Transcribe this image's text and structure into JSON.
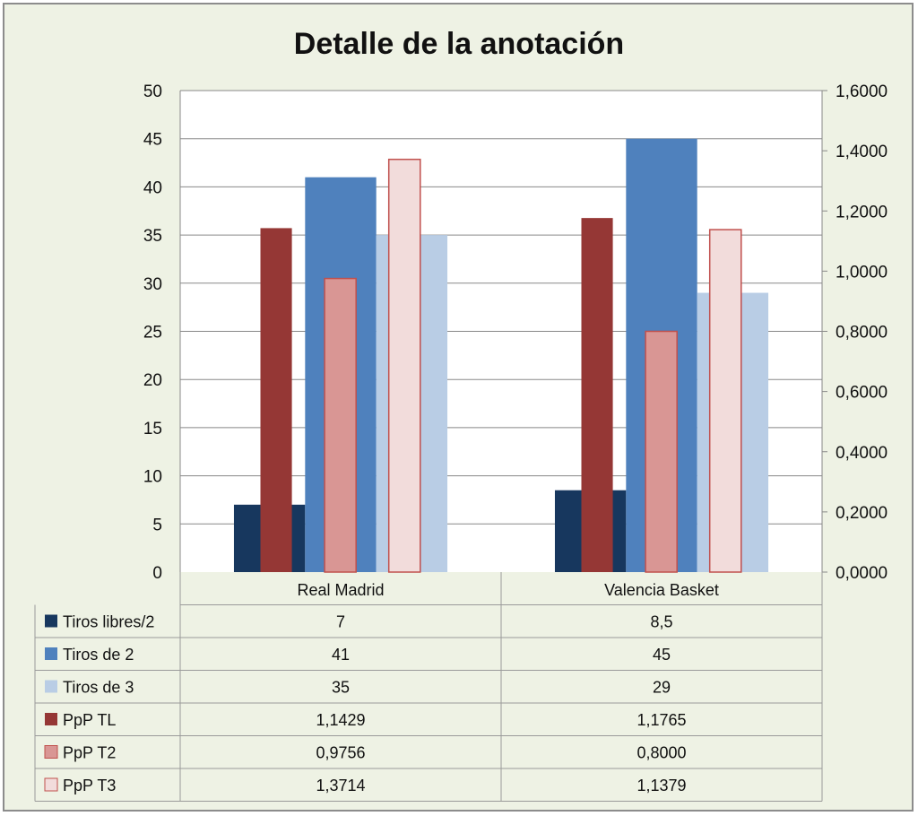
{
  "chart_data": {
    "type": "bar",
    "title": "Detalle de la anotación",
    "categories": [
      "Real Madrid",
      "Valencia Basket"
    ],
    "y_left": {
      "min": 0,
      "max": 50,
      "step": 5,
      "tick_labels": [
        "0",
        "5",
        "10",
        "15",
        "20",
        "25",
        "30",
        "35",
        "40",
        "45",
        "50"
      ]
    },
    "y_right": {
      "min": 0,
      "max": 1.6,
      "step": 0.2,
      "tick_labels": [
        "0,0000",
        "0,2000",
        "0,4000",
        "0,6000",
        "0,8000",
        "1,0000",
        "1,2000",
        "1,4000",
        "1,6000"
      ]
    },
    "grid": true,
    "legend": "data-table",
    "series": [
      {
        "name": "Tiros libres/2",
        "axis": "left",
        "color": "#17375e",
        "values": [
          7,
          8.5
        ],
        "labels": [
          "7",
          "8,5"
        ]
      },
      {
        "name": "Tiros de 2",
        "axis": "left",
        "color": "#4f81bd",
        "values": [
          41,
          45
        ],
        "labels": [
          "41",
          "45"
        ]
      },
      {
        "name": "Tiros de 3",
        "axis": "left",
        "color": "#b9cde5",
        "values": [
          35,
          29
        ],
        "labels": [
          "35",
          "29"
        ]
      },
      {
        "name": "PpP TL",
        "axis": "right",
        "color": "#953735",
        "values": [
          1.1429,
          1.1765
        ],
        "labels": [
          "1,1429",
          "1,1765"
        ]
      },
      {
        "name": "PpP T2",
        "axis": "right",
        "color": "#d99694",
        "values": [
          0.9756,
          0.8
        ],
        "labels": [
          "0,9756",
          "0,8000"
        ]
      },
      {
        "name": "PpP T3",
        "axis": "right",
        "color": "#f2dcdb",
        "values": [
          1.3714,
          1.1379
        ],
        "labels": [
          "1,3714",
          "1,1379"
        ]
      }
    ]
  }
}
